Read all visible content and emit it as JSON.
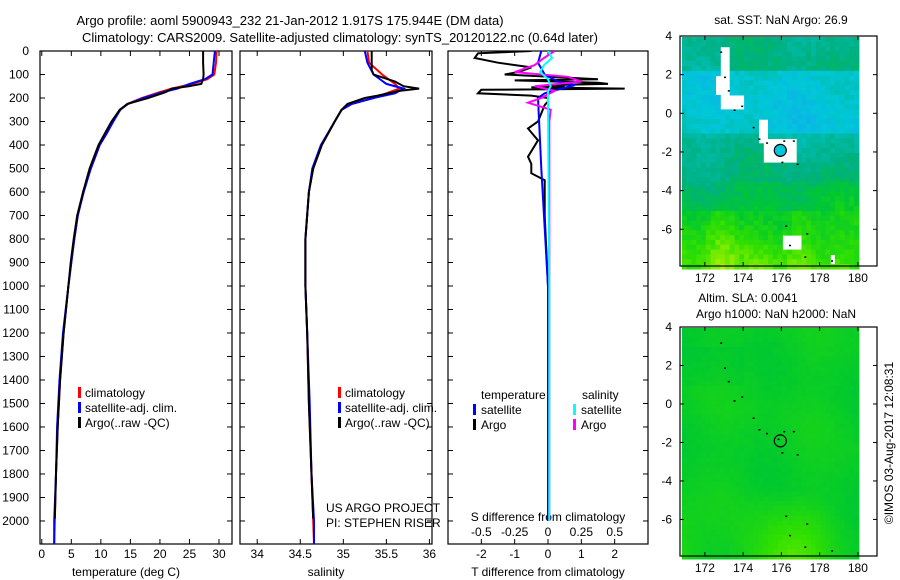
{
  "header": {
    "title_line1": "Argo profile: aoml 5900943_232 21-Jan-2012 1.917S 175.944E (DM data)",
    "title_line2": "Climatology: CARS2009. Satellite-adjusted climatology: synTS_20120122.nc (0.64d later)"
  },
  "credit": {
    "project": "US ARGO PROJECT",
    "pi": "PI: STEPHEN RISER",
    "stamp": "©IMOS 03-Aug-2017 12:08:31"
  },
  "colors": {
    "climatology": "#ff0000",
    "satellite": "#0000ff",
    "argo": "#000000",
    "sal_satellite": "#00ffff",
    "sal_argo": "#ff00ff"
  },
  "chart_data": [
    {
      "type": "line",
      "xlabel": "temperature (deg C)",
      "ylabel": "",
      "xlim": [
        -0.3,
        32.2
      ],
      "ylim": [
        0,
        2098
      ],
      "xticks": [
        0,
        5,
        10,
        15,
        20,
        25,
        30
      ],
      "yticks": [
        0,
        100,
        200,
        300,
        400,
        500,
        600,
        700,
        800,
        900,
        1000,
        1100,
        1200,
        1300,
        1400,
        1500,
        1600,
        1700,
        1800,
        1900,
        2000
      ],
      "legend": [
        "climatology",
        "satellite-adj. clim.",
        "Argo(..raw -QC)"
      ],
      "series": [
        {
          "name": "climatology",
          "color": "#ff0000",
          "depth": [
            0,
            50,
            100,
            120,
            140,
            160,
            175,
            200,
            225,
            250,
            300,
            350,
            400,
            500,
            600,
            700,
            800,
            900,
            1000,
            1200,
            1400,
            1600,
            1800,
            2000,
            2098
          ],
          "values": [
            29.6,
            29.5,
            29.2,
            28,
            25.5,
            22,
            20,
            17,
            14.5,
            13.3,
            12,
            11,
            9.8,
            8.3,
            7,
            6.1,
            5.5,
            5,
            4.5,
            3.7,
            3.1,
            2.7,
            2.4,
            2.2,
            2.1
          ]
        },
        {
          "name": "satellite-adj. clim.",
          "color": "#0000ff",
          "depth": [
            0,
            50,
            100,
            120,
            140,
            160,
            175,
            200,
            225,
            250,
            300,
            350,
            400,
            500,
            600,
            700,
            800,
            900,
            1000,
            1200,
            1400,
            1600,
            1800,
            2000,
            2098
          ],
          "values": [
            29.3,
            29.1,
            28.9,
            27.6,
            25,
            23,
            20.5,
            17.2,
            14.6,
            13.3,
            12.1,
            11,
            9.8,
            8.3,
            7.1,
            6.1,
            5.5,
            5,
            4.5,
            3.6,
            3,
            2.6,
            2.4,
            2.1,
            2.1
          ]
        },
        {
          "name": "Argo(..raw -QC)",
          "color": "#000000",
          "depth": [
            0,
            50,
            100,
            120,
            140,
            150,
            160,
            175,
            200,
            225,
            250,
            300,
            350,
            400,
            500,
            600,
            700,
            800,
            900,
            1000,
            1200,
            1400,
            1600,
            1800,
            1990
          ],
          "values": [
            27.3,
            27.3,
            27.4,
            27.3,
            27,
            25,
            22,
            21,
            18,
            14.5,
            13.2,
            11.8,
            10.7,
            9.6,
            8.1,
            7,
            6,
            5.4,
            4.9,
            4.5,
            3.7,
            3.1,
            2.7,
            2.4,
            2.2
          ]
        }
      ]
    },
    {
      "type": "line",
      "xlabel": "salinity",
      "xlim": [
        33.8,
        36.03
      ],
      "ylim": [
        0,
        2098
      ],
      "xticks": [
        34,
        34.5,
        35,
        35.5,
        36
      ],
      "xticklabels": [
        "34",
        "34.5",
        "35",
        "35.5",
        "36"
      ],
      "legend": [
        "climatology",
        "satellite-adj. clim.",
        "Argo(..raw -QC)"
      ],
      "series": [
        {
          "name": "climatology",
          "color": "#ff0000",
          "depth": [
            0,
            50,
            100,
            140,
            160,
            180,
            200,
            225,
            250,
            300,
            400,
            500,
            600,
            800,
            1000,
            1200,
            1500,
            1800,
            2000,
            2098
          ],
          "values": [
            35.28,
            35.3,
            35.45,
            35.6,
            35.65,
            35.5,
            35.35,
            35.1,
            34.98,
            34.9,
            34.75,
            34.65,
            34.6,
            34.56,
            34.56,
            34.58,
            34.6,
            34.63,
            34.65,
            34.66
          ]
        },
        {
          "name": "satellite-adj. clim.",
          "color": "#0000ff",
          "depth": [
            0,
            50,
            100,
            140,
            160,
            180,
            200,
            225,
            250,
            300,
            400,
            500,
            600,
            800,
            1000,
            1200,
            1500,
            1800,
            2000,
            2098
          ],
          "values": [
            35.25,
            35.28,
            35.35,
            35.5,
            35.7,
            35.6,
            35.35,
            35.1,
            34.98,
            34.9,
            34.74,
            34.64,
            34.6,
            34.56,
            34.56,
            34.58,
            34.61,
            34.63,
            34.66,
            34.66
          ]
        },
        {
          "name": "Argo(..raw -QC)",
          "color": "#000000",
          "depth": [
            0,
            80,
            100,
            130,
            150,
            160,
            170,
            190,
            200,
            225,
            250,
            300,
            400,
            500,
            600,
            800,
            1000,
            1200,
            1500,
            1800,
            1990
          ],
          "values": [
            35.33,
            35.33,
            35.35,
            35.6,
            35.7,
            35.88,
            35.65,
            35.4,
            35.25,
            35.05,
            34.98,
            34.9,
            34.75,
            34.65,
            34.6,
            34.56,
            34.56,
            34.58,
            34.6,
            34.63,
            34.65
          ]
        }
      ]
    },
    {
      "type": "line",
      "xlabel": "T difference from climatology",
      "x2label": "S difference from climatology",
      "xlim": [
        -3,
        3
      ],
      "x2lim": [
        -0.75,
        0.75
      ],
      "ylim": [
        0,
        2098
      ],
      "xticks": [
        -2,
        -1,
        0,
        1,
        2
      ],
      "x2ticks": [
        -0.5,
        -0.25,
        0,
        0.25,
        0.5
      ],
      "x2ticklabels": [
        "-0.5",
        "-0.25",
        "0",
        "0.25",
        "0.5"
      ],
      "legend": {
        "temperature_header": "temperature",
        "salinity_header": "salinity",
        "satellite": "satellite",
        "argo": "Argo"
      },
      "series": [
        {
          "name": "T Argo",
          "axis": "T",
          "color": "#000000",
          "depth": [
            0,
            10,
            30,
            50,
            70,
            80,
            90,
            100,
            120,
            125,
            135,
            140,
            145,
            150,
            155,
            160,
            165,
            180,
            190,
            200,
            215,
            230,
            300,
            330,
            380,
            450,
            480,
            520,
            550,
            700,
            1000,
            2000
          ],
          "values": [
            -0.5,
            -2.1,
            -2.2,
            -1.5,
            -0.5,
            -0.7,
            -0.9,
            -1.3,
            1.5,
            -1,
            1.5,
            1.8,
            0,
            0.5,
            -0.5,
            2.3,
            -2,
            -2.1,
            -0.5,
            0,
            0,
            -0.1,
            -0.3,
            -0.6,
            -0.3,
            -0.6,
            -0.5,
            -0.5,
            -0.1,
            -0.1,
            0,
            0
          ]
        },
        {
          "name": "T satellite",
          "axis": "T",
          "color": "#0000ff",
          "depth": [
            0,
            50,
            100,
            130,
            145,
            160,
            180,
            200,
            500,
            1000,
            2000
          ],
          "values": [
            -0.2,
            -0.3,
            -0.1,
            0.3,
            0.8,
            0.4,
            -0.1,
            -0.3,
            -0.2,
            0,
            0
          ]
        },
        {
          "name": "S Argo",
          "axis": "S",
          "color": "#ff00ff",
          "depth": [
            0,
            30,
            60,
            90,
            110,
            130,
            150,
            170,
            200,
            220,
            250,
            300,
            1000,
            2000
          ],
          "values": [
            0.05,
            -0.03,
            -0.1,
            -0.25,
            0.15,
            0.25,
            -0.1,
            0.05,
            -0.05,
            -0.15,
            0.02,
            0.01,
            0.01,
            0.01
          ]
        },
        {
          "name": "S satellite",
          "axis": "S",
          "color": "#00ffff",
          "depth": [
            0,
            30,
            60,
            90,
            120,
            150,
            170,
            200,
            1000,
            2000
          ],
          "values": [
            0,
            0.03,
            -0.03,
            -0.06,
            0,
            0.02,
            0,
            0,
            0.01,
            0.01
          ]
        }
      ]
    },
    {
      "type": "heatmap",
      "title": "sat. SST: NaN Argo: 26.9",
      "xlim": [
        170.7,
        181
      ],
      "ylim": [
        -7.9,
        4
      ],
      "xticks": [
        172,
        174,
        176,
        178,
        180
      ],
      "yticks": [
        4,
        2,
        0,
        -2,
        -4,
        -6
      ],
      "marker": {
        "lon": 175.944,
        "lat": -1.917
      }
    },
    {
      "type": "heatmap",
      "title": "Altim. SLA: 0.0041",
      "subtitle": "Argo h1000: NaN h2000: NaN",
      "xlim": [
        170.7,
        181
      ],
      "ylim": [
        -7.9,
        4
      ],
      "xticks": [
        172,
        174,
        176,
        178,
        180
      ],
      "yticks": [
        4,
        2,
        0,
        -2,
        -4,
        -6
      ],
      "marker": {
        "lon": 175.944,
        "lat": -1.917
      }
    }
  ]
}
